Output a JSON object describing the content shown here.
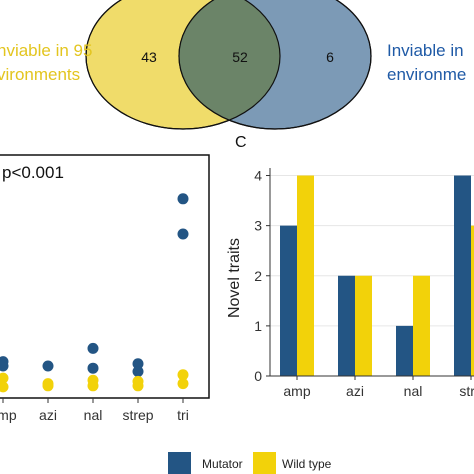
{
  "colors": {
    "mutator": "#235584",
    "wildtype": "#f2d20a",
    "venn_left": "#f0dc6a",
    "venn_right": "#7c9ab6",
    "venn_overlap": "#6b8468",
    "label_yellow": "#e3c51f",
    "label_blue": "#1f5aa6"
  },
  "venn": {
    "left_label_line1": "nviable in 95",
    "left_label_line2": "vironments",
    "right_label_line1": "Inviable in",
    "right_label_line2": "environme",
    "left_only": "43",
    "overlap": "52",
    "right_only": "6"
  },
  "panel_c_letter": "C",
  "legend": {
    "mutator": "Mutator",
    "wildtype": "Wild type"
  },
  "chart_data": [
    {
      "type": "scatter",
      "annotation": "p<0.001",
      "xlabel": "",
      "ylabel": "",
      "categories": [
        "amp",
        "azi",
        "nal",
        "strep",
        "tri"
      ],
      "series": [
        {
          "name": "Mutator",
          "points": [
            {
              "x": "amp",
              "y": 2.2
            },
            {
              "x": "amp",
              "y": 2.0
            },
            {
              "x": "azi",
              "y": 2.0
            },
            {
              "x": "nal",
              "y": 2.8
            },
            {
              "x": "nal",
              "y": 1.9
            },
            {
              "x": "strep",
              "y": 2.1
            },
            {
              "x": "strep",
              "y": 1.75
            },
            {
              "x": "tri",
              "y": 9.6
            },
            {
              "x": "tri",
              "y": 8.0
            }
          ]
        },
        {
          "name": "Wild type",
          "points": [
            {
              "x": "amp",
              "y": 1.45
            },
            {
              "x": "amp",
              "y": 1.05
            },
            {
              "x": "azi",
              "y": 1.2
            },
            {
              "x": "azi",
              "y": 1.1
            },
            {
              "x": "nal",
              "y": 1.35
            },
            {
              "x": "nal",
              "y": 1.1
            },
            {
              "x": "strep",
              "y": 1.3
            },
            {
              "x": "strep",
              "y": 1.1
            },
            {
              "x": "tri",
              "y": 1.6
            },
            {
              "x": "tri",
              "y": 1.2
            }
          ]
        }
      ]
    },
    {
      "type": "bar",
      "ylabel": "Novel traits",
      "xlabel": "",
      "categories": [
        "amp",
        "azi",
        "nal",
        "stre"
      ],
      "y_ticks": [
        "0",
        "1",
        "2",
        "3",
        "4"
      ],
      "ylim": [
        0,
        4.15
      ],
      "series": [
        {
          "name": "Mutator",
          "values": [
            3,
            2,
            1,
            4
          ]
        },
        {
          "name": "Wild type",
          "values": [
            4,
            2,
            2,
            3
          ]
        }
      ]
    }
  ]
}
